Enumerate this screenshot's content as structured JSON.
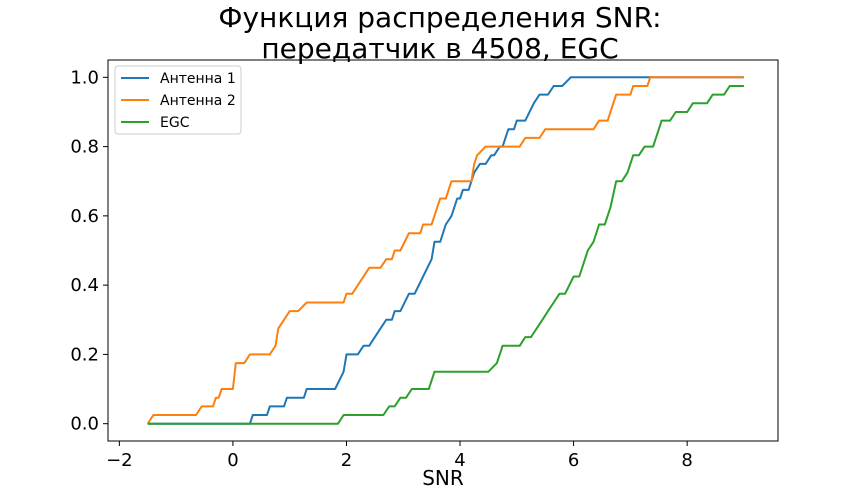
{
  "chart_data": {
    "type": "line",
    "title_line1": "Функция распределения SNR:",
    "title_line2": "передатчик в 4508, EGC",
    "xlabel": "SNR",
    "ylabel": "",
    "xlim": [
      -2.2,
      9.6
    ],
    "ylim": [
      -0.05,
      1.05
    ],
    "x_ticks": [
      -2,
      0,
      2,
      4,
      6,
      8
    ],
    "x_tick_labels": [
      "−2",
      "0",
      "2",
      "4",
      "6",
      "8"
    ],
    "y_ticks": [
      0.0,
      0.2,
      0.4,
      0.6,
      0.8,
      1.0
    ],
    "y_tick_labels": [
      "0.0",
      "0.2",
      "0.4",
      "0.6",
      "0.8",
      "1.0"
    ],
    "grid": false,
    "legend_position": "upper-left",
    "series": [
      {
        "name": "Антенна 1",
        "color": "#1f77b4",
        "points": [
          [
            -1.5,
            0.0
          ],
          [
            0.3,
            0.0
          ],
          [
            0.35,
            0.025
          ],
          [
            0.6,
            0.025
          ],
          [
            0.65,
            0.05
          ],
          [
            0.9,
            0.05
          ],
          [
            0.95,
            0.075
          ],
          [
            1.25,
            0.075
          ],
          [
            1.3,
            0.1
          ],
          [
            1.8,
            0.1
          ],
          [
            1.95,
            0.15
          ],
          [
            2.0,
            0.2
          ],
          [
            2.2,
            0.2
          ],
          [
            2.3,
            0.225
          ],
          [
            2.4,
            0.225
          ],
          [
            2.6,
            0.275
          ],
          [
            2.7,
            0.3
          ],
          [
            2.8,
            0.3
          ],
          [
            2.85,
            0.325
          ],
          [
            2.95,
            0.325
          ],
          [
            3.1,
            0.375
          ],
          [
            3.2,
            0.375
          ],
          [
            3.35,
            0.425
          ],
          [
            3.5,
            0.475
          ],
          [
            3.55,
            0.525
          ],
          [
            3.65,
            0.525
          ],
          [
            3.75,
            0.575
          ],
          [
            3.85,
            0.6
          ],
          [
            3.95,
            0.65
          ],
          [
            4.0,
            0.65
          ],
          [
            4.05,
            0.675
          ],
          [
            4.15,
            0.675
          ],
          [
            4.25,
            0.725
          ],
          [
            4.35,
            0.75
          ],
          [
            4.45,
            0.75
          ],
          [
            4.55,
            0.775
          ],
          [
            4.6,
            0.775
          ],
          [
            4.7,
            0.8
          ],
          [
            4.75,
            0.8
          ],
          [
            4.85,
            0.85
          ],
          [
            4.95,
            0.85
          ],
          [
            5.0,
            0.875
          ],
          [
            5.15,
            0.875
          ],
          [
            5.3,
            0.925
          ],
          [
            5.4,
            0.95
          ],
          [
            5.55,
            0.95
          ],
          [
            5.65,
            0.975
          ],
          [
            5.8,
            0.975
          ],
          [
            5.95,
            1.0
          ],
          [
            9.0,
            1.0
          ]
        ]
      },
      {
        "name": "Антенна 2",
        "color": "#ff7f0e",
        "points": [
          [
            -1.5,
            0.0
          ],
          [
            -1.4,
            0.025
          ],
          [
            -0.65,
            0.025
          ],
          [
            -0.55,
            0.05
          ],
          [
            -0.35,
            0.05
          ],
          [
            -0.3,
            0.075
          ],
          [
            -0.25,
            0.075
          ],
          [
            -0.2,
            0.1
          ],
          [
            0.0,
            0.1
          ],
          [
            0.05,
            0.175
          ],
          [
            0.2,
            0.175
          ],
          [
            0.3,
            0.2
          ],
          [
            0.65,
            0.2
          ],
          [
            0.75,
            0.225
          ],
          [
            0.8,
            0.275
          ],
          [
            0.9,
            0.3
          ],
          [
            1.0,
            0.325
          ],
          [
            1.15,
            0.325
          ],
          [
            1.3,
            0.35
          ],
          [
            1.95,
            0.35
          ],
          [
            2.0,
            0.375
          ],
          [
            2.1,
            0.375
          ],
          [
            2.4,
            0.45
          ],
          [
            2.6,
            0.45
          ],
          [
            2.7,
            0.475
          ],
          [
            2.8,
            0.475
          ],
          [
            2.85,
            0.5
          ],
          [
            2.95,
            0.5
          ],
          [
            3.1,
            0.55
          ],
          [
            3.3,
            0.55
          ],
          [
            3.35,
            0.575
          ],
          [
            3.5,
            0.575
          ],
          [
            3.6,
            0.625
          ],
          [
            3.65,
            0.65
          ],
          [
            3.75,
            0.65
          ],
          [
            3.85,
            0.7
          ],
          [
            4.2,
            0.7
          ],
          [
            4.25,
            0.75
          ],
          [
            4.3,
            0.775
          ],
          [
            4.45,
            0.8
          ],
          [
            5.05,
            0.8
          ],
          [
            5.15,
            0.825
          ],
          [
            5.4,
            0.825
          ],
          [
            5.5,
            0.85
          ],
          [
            6.35,
            0.85
          ],
          [
            6.45,
            0.875
          ],
          [
            6.6,
            0.875
          ],
          [
            6.7,
            0.925
          ],
          [
            6.75,
            0.95
          ],
          [
            7.0,
            0.95
          ],
          [
            7.05,
            0.975
          ],
          [
            7.3,
            0.975
          ],
          [
            7.35,
            1.0
          ],
          [
            9.0,
            1.0
          ]
        ]
      },
      {
        "name": "EGC",
        "color": "#2ca02c",
        "points": [
          [
            -1.5,
            0.0
          ],
          [
            1.85,
            0.0
          ],
          [
            1.95,
            0.025
          ],
          [
            2.65,
            0.025
          ],
          [
            2.75,
            0.05
          ],
          [
            2.85,
            0.05
          ],
          [
            2.95,
            0.075
          ],
          [
            3.05,
            0.075
          ],
          [
            3.15,
            0.1
          ],
          [
            3.45,
            0.1
          ],
          [
            3.55,
            0.15
          ],
          [
            4.5,
            0.15
          ],
          [
            4.65,
            0.175
          ],
          [
            4.75,
            0.225
          ],
          [
            5.05,
            0.225
          ],
          [
            5.15,
            0.25
          ],
          [
            5.25,
            0.25
          ],
          [
            5.45,
            0.3
          ],
          [
            5.55,
            0.325
          ],
          [
            5.65,
            0.35
          ],
          [
            5.75,
            0.375
          ],
          [
            5.85,
            0.375
          ],
          [
            6.0,
            0.425
          ],
          [
            6.1,
            0.425
          ],
          [
            6.25,
            0.5
          ],
          [
            6.35,
            0.525
          ],
          [
            6.45,
            0.575
          ],
          [
            6.55,
            0.575
          ],
          [
            6.65,
            0.625
          ],
          [
            6.75,
            0.7
          ],
          [
            6.85,
            0.7
          ],
          [
            6.95,
            0.725
          ],
          [
            7.05,
            0.775
          ],
          [
            7.15,
            0.775
          ],
          [
            7.25,
            0.8
          ],
          [
            7.4,
            0.8
          ],
          [
            7.5,
            0.85
          ],
          [
            7.55,
            0.875
          ],
          [
            7.7,
            0.875
          ],
          [
            7.8,
            0.9
          ],
          [
            8.0,
            0.9
          ],
          [
            8.1,
            0.925
          ],
          [
            8.35,
            0.925
          ],
          [
            8.45,
            0.95
          ],
          [
            8.65,
            0.95
          ],
          [
            8.75,
            0.975
          ],
          [
            9.0,
            0.975
          ]
        ]
      }
    ]
  }
}
